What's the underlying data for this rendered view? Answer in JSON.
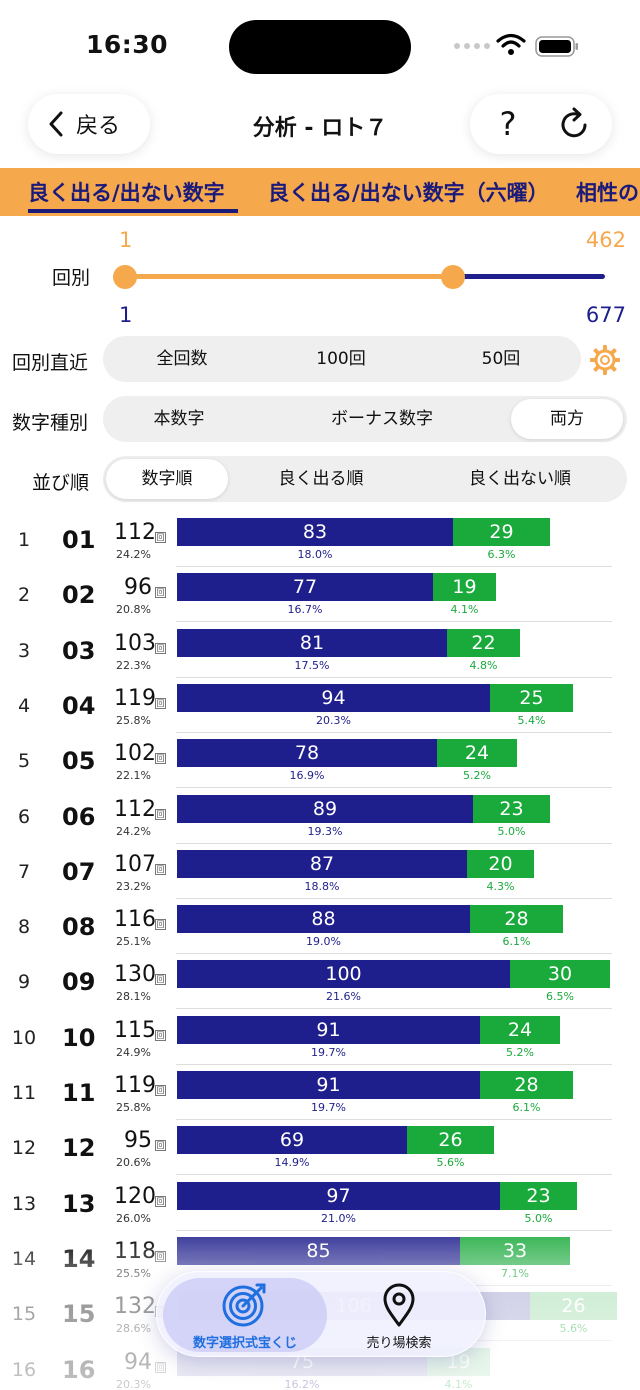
{
  "status_bar": {
    "time": "16:30"
  },
  "nav": {
    "back_label": "戻る",
    "title": "分析 - ロト７",
    "help_label": "?"
  },
  "tabs": [
    {
      "label": "良く出る/出ない数字",
      "selected": true
    },
    {
      "label": "良く出る/出ない数字（六曜）",
      "selected": false
    },
    {
      "label": "相性の",
      "selected": false
    }
  ],
  "range": {
    "label": "回別",
    "selected_from": "1",
    "selected_to": "462",
    "min": "1",
    "max": "677",
    "selected_fraction": [
      0.0,
      0.682
    ]
  },
  "recent_filter": {
    "label": "回別直近",
    "options": [
      "全回数",
      "100回",
      "50回"
    ],
    "selected_index": -1
  },
  "number_type": {
    "label": "数字種別",
    "options": [
      "本数字",
      "ボーナス数字",
      "両方"
    ],
    "selected_index": 2
  },
  "sort_order": {
    "label": "並び順",
    "options": [
      "数字順",
      "良く出る順",
      "良く出ない順"
    ],
    "selected_index": 0
  },
  "unit_mark": "回",
  "colors": {
    "orange": "#f6a84d",
    "main": "#1e1e8c",
    "bonus": "#1aaa3c"
  },
  "rows": [
    {
      "index": "1",
      "number": "01",
      "count": "112",
      "pct": "24.2%",
      "main": 83,
      "main_pct": "18.0%",
      "bonus": 29,
      "bonus_pct": "6.3%"
    },
    {
      "index": "2",
      "number": "02",
      "count": "96",
      "pct": "20.8%",
      "main": 77,
      "main_pct": "16.7%",
      "bonus": 19,
      "bonus_pct": "4.1%"
    },
    {
      "index": "3",
      "number": "03",
      "count": "103",
      "pct": "22.3%",
      "main": 81,
      "main_pct": "17.5%",
      "bonus": 22,
      "bonus_pct": "4.8%"
    },
    {
      "index": "4",
      "number": "04",
      "count": "119",
      "pct": "25.8%",
      "main": 94,
      "main_pct": "20.3%",
      "bonus": 25,
      "bonus_pct": "5.4%"
    },
    {
      "index": "5",
      "number": "05",
      "count": "102",
      "pct": "22.1%",
      "main": 78,
      "main_pct": "16.9%",
      "bonus": 24,
      "bonus_pct": "5.2%"
    },
    {
      "index": "6",
      "number": "06",
      "count": "112",
      "pct": "24.2%",
      "main": 89,
      "main_pct": "19.3%",
      "bonus": 23,
      "bonus_pct": "5.0%"
    },
    {
      "index": "7",
      "number": "07",
      "count": "107",
      "pct": "23.2%",
      "main": 87,
      "main_pct": "18.8%",
      "bonus": 20,
      "bonus_pct": "4.3%"
    },
    {
      "index": "8",
      "number": "08",
      "count": "116",
      "pct": "25.1%",
      "main": 88,
      "main_pct": "19.0%",
      "bonus": 28,
      "bonus_pct": "6.1%"
    },
    {
      "index": "9",
      "number": "09",
      "count": "130",
      "pct": "28.1%",
      "main": 100,
      "main_pct": "21.6%",
      "bonus": 30,
      "bonus_pct": "6.5%"
    },
    {
      "index": "10",
      "number": "10",
      "count": "115",
      "pct": "24.9%",
      "main": 91,
      "main_pct": "19.7%",
      "bonus": 24,
      "bonus_pct": "5.2%"
    },
    {
      "index": "11",
      "number": "11",
      "count": "119",
      "pct": "25.8%",
      "main": 91,
      "main_pct": "19.7%",
      "bonus": 28,
      "bonus_pct": "6.1%"
    },
    {
      "index": "12",
      "number": "12",
      "count": "95",
      "pct": "20.6%",
      "main": 69,
      "main_pct": "14.9%",
      "bonus": 26,
      "bonus_pct": "5.6%"
    },
    {
      "index": "13",
      "number": "13",
      "count": "120",
      "pct": "26.0%",
      "main": 97,
      "main_pct": "21.0%",
      "bonus": 23,
      "bonus_pct": "5.0%"
    },
    {
      "index": "14",
      "number": "14",
      "count": "118",
      "pct": "25.5%",
      "main": 85,
      "main_pct": "",
      "bonus": 33,
      "bonus_pct": "7.1%"
    },
    {
      "index": "15",
      "number": "15",
      "count": "132",
      "pct": "28.6%",
      "main": 106,
      "main_pct": "",
      "bonus": 26,
      "bonus_pct": "5.6%"
    },
    {
      "index": "16",
      "number": "16",
      "count": "94",
      "pct": "20.3%",
      "main": 75,
      "main_pct": "16.2%",
      "bonus": 19,
      "bonus_pct": "4.1%"
    }
  ],
  "bottom_tabs": [
    {
      "label": "数字選択式宝くじ",
      "icon": "target-icon",
      "selected": true
    },
    {
      "label": "売り場検索",
      "icon": "map-pin-icon",
      "selected": false
    }
  ]
}
